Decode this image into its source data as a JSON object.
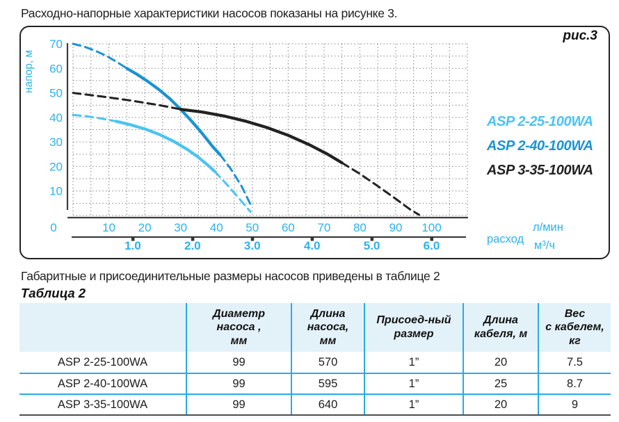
{
  "page": {
    "intro_text": "Расходно-напорные характеристики насосов показаны на рисунке 3.",
    "table_intro_text": "Габаритные и присоединительные размеры насосов приведены в таблице 2",
    "table_title": "Таблица 2"
  },
  "figure": {
    "label": "рис.3"
  },
  "colors": {
    "accent": "#2BB3EC",
    "table-line": "#29ABE2",
    "table-header-bg": "#E3F1F9",
    "grid": "#6e6e6e",
    "axis": "#3d3d3d"
  },
  "chart_data": {
    "type": "line",
    "title": "рис.3",
    "ylabel": "напор, м",
    "xlabel": "расход",
    "x_axis_units": [
      "л/мин",
      "м³/ч"
    ],
    "origin_label": "0",
    "y_ticks": [
      10,
      20,
      30,
      40,
      50,
      60,
      70
    ],
    "x_ticks_l_min": [
      10,
      20,
      30,
      40,
      50,
      60,
      70,
      80,
      90,
      100
    ],
    "x_ticks_m3_h": [
      "1.0",
      "2.0",
      "3.0",
      "4.0",
      "5.0",
      "6.0"
    ],
    "xlim": [
      0,
      110
    ],
    "ylim": [
      0,
      70
    ],
    "grid": {
      "step_x": 5,
      "step_y": 5,
      "style": "dotted"
    },
    "legend_position": "right",
    "series": [
      {
        "name": "ASP 2-25-100WA",
        "color": "#4AC4F1",
        "segments": [
          {
            "style": "dashed",
            "points": [
              [
                0,
                41
              ],
              [
                4,
                40.4
              ],
              [
                8,
                39.5
              ],
              [
                12,
                38.4
              ]
            ]
          },
          {
            "style": "solid",
            "points": [
              [
                12,
                38.4
              ],
              [
                16,
                37
              ],
              [
                20,
                35.3
              ],
              [
                24,
                33.1
              ],
              [
                28,
                30.3
              ],
              [
                32,
                26.8
              ],
              [
                35,
                23.7
              ],
              [
                38,
                20
              ],
              [
                39.5,
                18
              ]
            ]
          },
          {
            "style": "dashed",
            "points": [
              [
                39.5,
                18
              ],
              [
                43,
                12.5
              ],
              [
                46,
                7.5
              ],
              [
                49.5,
                1.5
              ]
            ]
          }
        ]
      },
      {
        "name": "ASP 2-40-100WA",
        "color": "#1B93D2",
        "segments": [
          {
            "style": "dashed",
            "points": [
              [
                0,
                70
              ],
              [
                3,
                68.9
              ],
              [
                6,
                67.3
              ],
              [
                9,
                65.3
              ],
              [
                12,
                62.8
              ],
              [
                15,
                60
              ]
            ]
          },
          {
            "style": "solid",
            "points": [
              [
                15,
                60
              ],
              [
                18,
                57.4
              ],
              [
                21,
                54.5
              ],
              [
                24,
                51.3
              ],
              [
                27,
                47.6
              ],
              [
                30,
                43.3
              ],
              [
                33,
                38.6
              ],
              [
                36,
                33.5
              ],
              [
                39,
                28
              ],
              [
                41,
                24.8
              ]
            ]
          },
          {
            "style": "dashed",
            "points": [
              [
                41,
                24.8
              ],
              [
                44,
                19
              ],
              [
                47,
                12
              ],
              [
                49.5,
                4.5
              ]
            ]
          }
        ]
      },
      {
        "name": "ASP 3-35-100WA",
        "color": "#222222",
        "segments": [
          {
            "style": "dashed",
            "points": [
              [
                0,
                50
              ],
              [
                8,
                48.5
              ],
              [
                16,
                46.9
              ],
              [
                24,
                45
              ],
              [
                30,
                43.3
              ]
            ]
          },
          {
            "style": "solid",
            "points": [
              [
                30,
                43.3
              ],
              [
                36,
                42.2
              ],
              [
                42,
                40.6
              ],
              [
                48,
                38.5
              ],
              [
                54,
                35.9
              ],
              [
                60,
                32.7
              ],
              [
                66,
                28.8
              ],
              [
                71,
                25
              ],
              [
                75,
                21.5
              ]
            ]
          },
          {
            "style": "dashed",
            "points": [
              [
                75,
                21.5
              ],
              [
                80,
                17
              ],
              [
                85,
                12
              ],
              [
                90,
                6.8
              ],
              [
                94,
                2.5
              ],
              [
                96.5,
                0.3
              ]
            ]
          }
        ]
      }
    ]
  },
  "table": {
    "headers": [
      "",
      "Диаметр\nнасоса ,\nмм",
      "Длина\nнасоса,\nмм",
      "Присоед-ный\nразмер",
      "Длина\nкабеля, м",
      "Вес\nс кабелем,\nкг"
    ],
    "rows": [
      {
        "cols": [
          "ASP 2-25-100WA",
          "99",
          "570",
          "1”",
          "20",
          "7.5"
        ]
      },
      {
        "cols": [
          "ASP 2-40-100WA",
          "99",
          "595",
          "1”",
          "25",
          "8.7"
        ]
      },
      {
        "cols": [
          "ASP 3-35-100WA",
          "99",
          "640",
          "1”",
          "20",
          "9"
        ]
      }
    ]
  }
}
